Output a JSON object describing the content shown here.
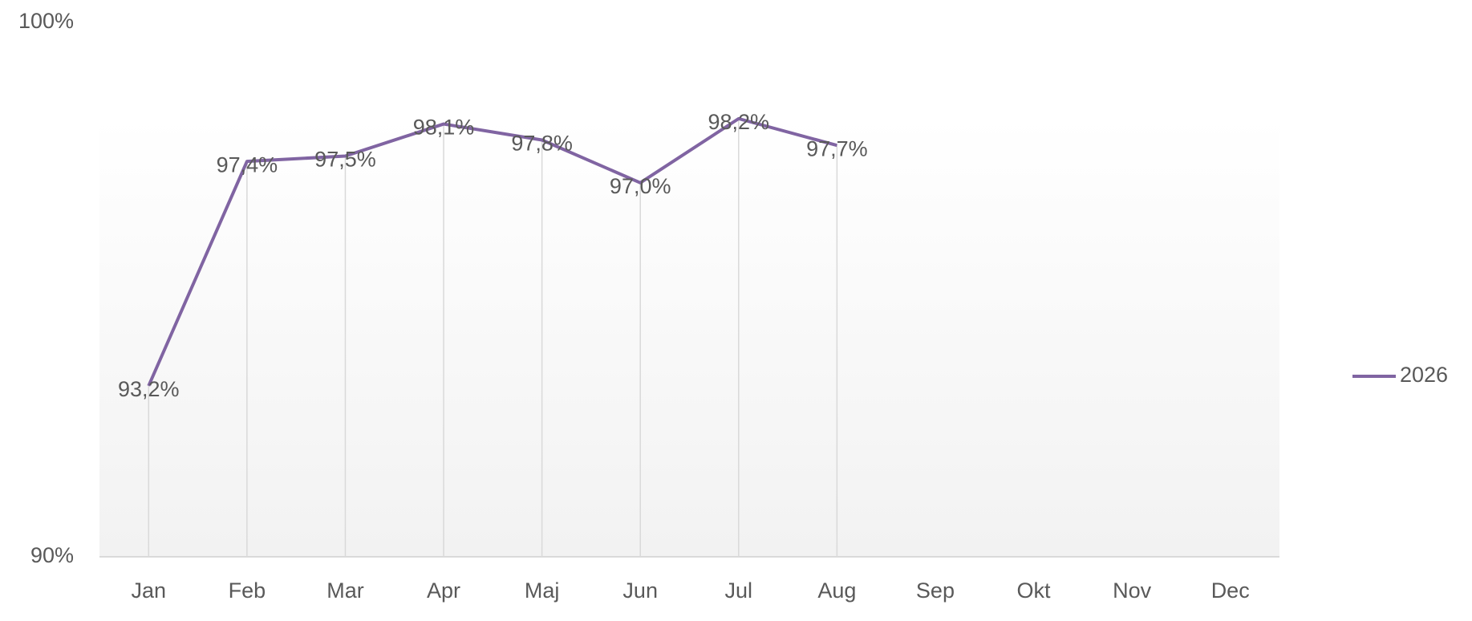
{
  "chart_data": {
    "type": "line",
    "categories": [
      "Jan",
      "Feb",
      "Mar",
      "Apr",
      "Maj",
      "Jun",
      "Jul",
      "Aug",
      "Sep",
      "Okt",
      "Nov",
      "Dec"
    ],
    "series": [
      {
        "name": "2026",
        "color": "#8064a2",
        "values": [
          93.2,
          97.4,
          97.5,
          98.1,
          97.8,
          97.0,
          98.2,
          97.7,
          null,
          null,
          null,
          null
        ],
        "value_labels": [
          "93,2%",
          "97,4%",
          "97,5%",
          "98,1%",
          "97,8%",
          "97,0%",
          "98,2%",
          "97,7%",
          null,
          null,
          null,
          null
        ]
      }
    ],
    "ylim": [
      90,
      100
    ],
    "yticks": [
      {
        "value": 90,
        "label": "90%"
      },
      {
        "value": 100,
        "label": "100%"
      }
    ],
    "grid": false,
    "drop_lines": true,
    "legend": "right"
  }
}
